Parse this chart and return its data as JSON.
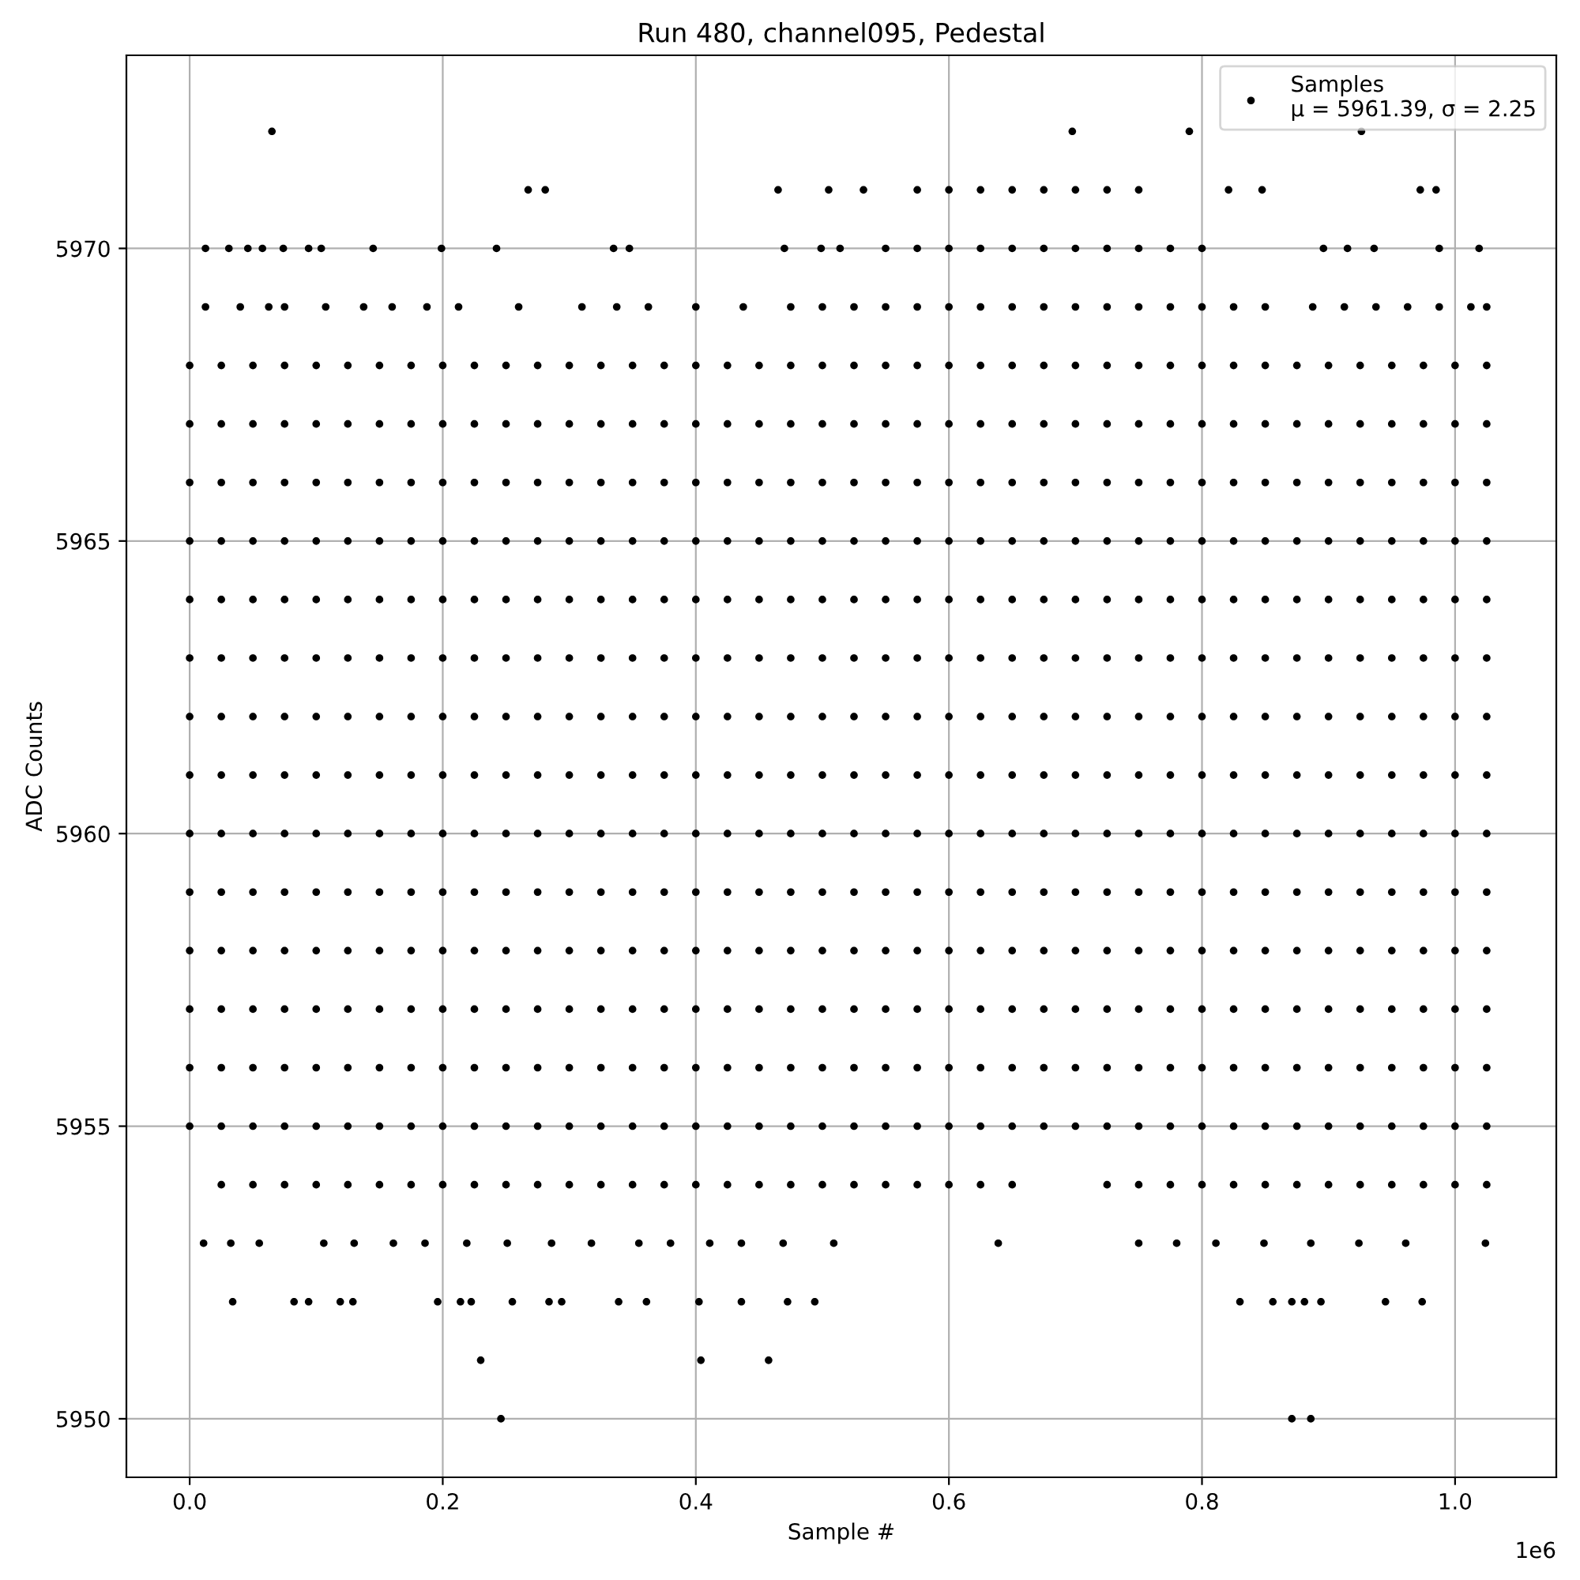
{
  "chart_data": {
    "type": "scatter",
    "title": "Run 480, channel095, Pedestal",
    "xlabel": "Sample #",
    "ylabel": "ADC Counts",
    "annotations": [
      "1e6"
    ],
    "xlim": [
      -0.05,
      1.08
    ],
    "ylim": [
      5949,
      5973.3
    ],
    "xticks": [
      {
        "value": 0,
        "label": "0.0"
      },
      0.2,
      0.4,
      0.6,
      0.8,
      {
        "value": 1,
        "label": "1.0"
      }
    ],
    "yticks": [
      5950,
      5955,
      5960,
      5965,
      5970
    ],
    "grid": true,
    "legend": "top right",
    "marker": "circle",
    "series": [
      {
        "name": "Samples\nμ = 5961.39, σ = 2.25",
        "color": "#000000",
        "x": [
          0,
          0.025,
          0.05,
          0.075,
          0.1,
          0.125,
          0.15,
          0.175,
          0.2,
          0.225,
          0.25,
          0.275,
          0.3,
          0.325,
          0.35,
          0.375,
          0.4,
          0.425,
          0.45,
          0.475,
          0.5,
          0.525,
          0.55,
          0.575,
          0.6,
          0.625,
          0.65,
          0.675,
          0.7,
          0.725,
          0.75,
          0.775,
          0.8,
          0.825,
          0.85,
          0.875,
          0.9,
          0.925,
          0.95,
          0.975,
          1.0,
          1.025,
          0,
          0.025,
          0.05,
          0.075,
          0.1,
          0.125,
          0.15,
          0.175,
          0.2,
          0.225,
          0.25,
          0.275,
          0.3,
          0.325,
          0.35,
          0.375,
          0.4,
          0.425,
          0.45,
          0.475,
          0.5,
          0.525,
          0.55,
          0.575,
          0.6,
          0.625,
          0.65,
          0.675,
          0.7,
          0.725,
          0.75,
          0.775,
          0.8,
          0.825,
          0.85,
          0.875,
          0.9,
          0.925,
          0.95,
          0.975,
          1.0,
          1.025,
          0,
          0.025,
          0.05,
          0.075,
          0.1,
          0.125,
          0.15,
          0.175,
          0.2,
          0.225,
          0.25,
          0.275,
          0.3,
          0.325,
          0.35,
          0.375,
          0.4,
          0.425,
          0.45,
          0.475,
          0.5,
          0.525,
          0.55,
          0.575,
          0.6,
          0.625,
          0.65,
          0.675,
          0.7,
          0.725,
          0.75,
          0.775,
          0.8,
          0.825,
          0.85,
          0.875,
          0.9,
          0.925,
          0.95,
          0.975,
          1.0,
          1.025,
          0,
          0.025,
          0.05,
          0.075,
          0.1,
          0.125,
          0.15,
          0.175,
          0.2,
          0.225,
          0.25,
          0.275,
          0.3,
          0.325,
          0.35,
          0.375,
          0.4,
          0.425,
          0.45,
          0.475,
          0.5,
          0.525,
          0.55,
          0.575,
          0.6,
          0.625,
          0.65,
          0.675,
          0.7,
          0.725,
          0.75,
          0.775,
          0.8,
          0.825,
          0.85,
          0.875,
          0.9,
          0.925,
          0.95,
          0.975,
          1.0,
          1.025,
          0,
          0.025,
          0.05,
          0.075,
          0.1,
          0.125,
          0.15,
          0.175,
          0.2,
          0.225,
          0.25,
          0.275,
          0.3,
          0.325,
          0.35,
          0.375,
          0.4,
          0.425,
          0.45,
          0.475,
          0.5,
          0.525,
          0.55,
          0.575,
          0.6,
          0.625,
          0.65,
          0.675,
          0.7,
          0.725,
          0.75,
          0.775,
          0.8,
          0.825,
          0.85,
          0.875,
          0.9,
          0.925,
          0.95,
          0.975,
          1.0,
          1.025,
          0,
          0.025,
          0.05,
          0.075,
          0.1,
          0.125,
          0.15,
          0.175,
          0.2,
          0.225,
          0.25,
          0.275,
          0.3,
          0.325,
          0.35,
          0.375,
          0.4,
          0.425,
          0.45,
          0.475,
          0.5,
          0.525,
          0.55,
          0.575,
          0.6,
          0.625,
          0.65,
          0.675,
          0.7,
          0.725,
          0.75,
          0.775,
          0.8,
          0.825,
          0.85,
          0.875,
          0.9,
          0.925,
          0.95,
          0.975,
          1.0,
          1.025,
          0,
          0.025,
          0.05,
          0.075,
          0.1,
          0.125,
          0.15,
          0.175,
          0.2,
          0.225,
          0.25,
          0.275,
          0.3,
          0.325,
          0.35,
          0.375,
          0.4,
          0.425,
          0.45,
          0.475,
          0.5,
          0.525,
          0.55,
          0.575,
          0.6,
          0.625,
          0.65,
          0.675,
          0.7,
          0.725,
          0.75,
          0.775,
          0.8,
          0.825,
          0.85,
          0.875,
          0.9,
          0.925,
          0.95,
          0.975,
          1.0,
          1.025,
          0,
          0.025,
          0.05,
          0.075,
          0.1,
          0.125,
          0.15,
          0.175,
          0.2,
          0.225,
          0.25,
          0.275,
          0.3,
          0.325,
          0.35,
          0.375,
          0.4,
          0.425,
          0.45,
          0.475,
          0.5,
          0.525,
          0.55,
          0.575,
          0.6,
          0.625,
          0.65,
          0.675,
          0.7,
          0.725,
          0.75,
          0.775,
          0.8,
          0.825,
          0.85,
          0.875,
          0.9,
          0.925,
          0.95,
          0.975,
          1.0,
          1.025,
          0,
          0.025,
          0.05,
          0.075,
          0.1,
          0.125,
          0.15,
          0.175,
          0.2,
          0.225,
          0.25,
          0.275,
          0.3,
          0.325,
          0.35,
          0.375,
          0.4,
          0.425,
          0.45,
          0.475,
          0.5,
          0.525,
          0.55,
          0.575,
          0.6,
          0.625,
          0.65,
          0.675,
          0.7,
          0.725,
          0.75,
          0.775,
          0.8,
          0.825,
          0.85,
          0.875,
          0.9,
          0.925,
          0.95,
          0.975,
          1.0,
          1.025,
          0,
          0.025,
          0.05,
          0.075,
          0.1,
          0.125,
          0.15,
          0.175,
          0.2,
          0.225,
          0.25,
          0.275,
          0.3,
          0.325,
          0.35,
          0.375,
          0.4,
          0.425,
          0.45,
          0.475,
          0.5,
          0.525,
          0.55,
          0.575,
          0.6,
          0.625,
          0.65,
          0.675,
          0.7,
          0.725,
          0.75,
          0.775,
          0.8,
          0.825,
          0.85,
          0.875,
          0.9,
          0.925,
          0.95,
          0.975,
          1.0,
          1.025,
          0,
          0.025,
          0.05,
          0.075,
          0.1,
          0.125,
          0.15,
          0.175,
          0.2,
          0.225,
          0.25,
          0.275,
          0.3,
          0.325,
          0.35,
          0.375,
          0.4,
          0.425,
          0.45,
          0.475,
          0.5,
          0.525,
          0.55,
          0.575,
          0.6,
          0.625,
          0.65,
          0.675,
          0.7,
          0.725,
          0.75,
          0.775,
          0.8,
          0.825,
          0.85,
          0.875,
          0.9,
          0.925,
          0.95,
          0.975,
          1.0,
          1.025,
          0,
          0.025,
          0.05,
          0.075,
          0.1,
          0.125,
          0.15,
          0.175,
          0.2,
          0.225,
          0.25,
          0.275,
          0.3,
          0.325,
          0.35,
          0.375,
          0.4,
          0.425,
          0.45,
          0.475,
          0.5,
          0.525,
          0.55,
          0.575,
          0.6,
          0.625,
          0.65,
          0.675,
          0.7,
          0.725,
          0.75,
          0.775,
          0.8,
          0.825,
          0.85,
          0.875,
          0.9,
          0.925,
          0.95,
          0.975,
          1.0,
          1.025,
          0,
          0.025,
          0.05,
          0.075,
          0.1,
          0.125,
          0.15,
          0.175,
          0.2,
          0.225,
          0.25,
          0.275,
          0.3,
          0.325,
          0.35,
          0.375,
          0.4,
          0.425,
          0.45,
          0.475,
          0.5,
          0.525,
          0.55,
          0.575,
          0.6,
          0.625,
          0.65,
          0.675,
          0.7,
          0.725,
          0.75,
          0.775,
          0.8,
          0.825,
          0.85,
          0.875,
          0.9,
          0.925,
          0.95,
          0.975,
          1.0,
          1.025,
          0,
          0.025,
          0.05,
          0.075,
          0.1,
          0.125,
          0.15,
          0.175,
          0.2,
          0.225,
          0.25,
          0.275,
          0.3,
          0.325,
          0.35,
          0.375,
          0.4,
          0.425,
          0.45,
          0.475,
          0.5,
          0.525,
          0.55,
          0.575,
          0.6,
          0.625,
          0.65,
          0.675,
          0.7,
          0.725,
          0.75,
          0.775,
          0.8,
          0.825,
          0.85,
          0.875,
          0.9,
          0.925,
          0.95,
          0.975,
          1.0,
          1.025,
          0.025,
          0.05,
          0.075,
          0.1,
          0.125,
          0.15,
          0.175,
          0.2,
          0.225,
          0.25,
          0.275,
          0.3,
          0.325,
          0.35,
          0.375,
          0.4,
          0.425,
          0.45,
          0.475,
          0.5,
          0.525,
          0.55,
          0.575,
          0.6,
          0.625,
          0.65,
          0.725,
          0.75,
          0.775,
          0.8,
          0.825,
          0.85,
          0.875,
          0.9,
          0.925,
          0.95,
          0.975,
          1.0,
          1.025,
          0.065,
          0.6975,
          0.79,
          0.926,
          0.2675,
          0.281,
          0.465,
          0.505,
          0.5325,
          0.575,
          0.6,
          0.625,
          0.65,
          0.675,
          0.7,
          0.725,
          0.75,
          0.821,
          0.8475,
          0.9725,
          0.985,
          0.0125,
          0.031,
          0.046,
          0.0575,
          0.074,
          0.094,
          0.104,
          0.145,
          0.199,
          0.2425,
          0.335,
          0.3475,
          0.47,
          0.499,
          0.514,
          0.55,
          0.575,
          0.6,
          0.625,
          0.65,
          0.675,
          0.7,
          0.725,
          0.75,
          0.775,
          0.8,
          0.896,
          0.915,
          0.936,
          0.9875,
          1.019,
          0.0125,
          0.04,
          0.0625,
          0.075,
          0.1075,
          0.1375,
          0.16,
          0.1875,
          0.2125,
          0.26,
          0.31,
          0.3375,
          0.3625,
          0.4,
          0.4375,
          0.475,
          0.5,
          0.525,
          0.55,
          0.575,
          0.6,
          0.625,
          0.65,
          0.675,
          0.7,
          0.725,
          0.75,
          0.775,
          0.8,
          0.825,
          0.85,
          0.8875,
          0.9125,
          0.9375,
          0.9625,
          0.9875,
          1.0125,
          1.025,
          0.011,
          0.0325,
          0.055,
          0.106,
          0.13,
          0.161,
          0.186,
          0.219,
          0.251,
          0.286,
          0.3175,
          0.355,
          0.38,
          0.411,
          0.436,
          0.469,
          0.509,
          0.639,
          0.75,
          0.78,
          0.811,
          0.849,
          0.886,
          0.924,
          0.961,
          1.024,
          0.034,
          0.0825,
          0.094,
          0.119,
          0.129,
          0.196,
          0.214,
          0.2225,
          0.255,
          0.284,
          0.294,
          0.339,
          0.361,
          0.4025,
          0.436,
          0.4725,
          0.494,
          0.83,
          0.856,
          0.871,
          0.881,
          0.894,
          0.945,
          0.974,
          0.23,
          0.404,
          0.4575,
          0.246,
          0.871,
          0.886
        ],
        "values": [
          5968,
          5968,
          5968,
          5968,
          5968,
          5968,
          5968,
          5968,
          5968,
          5968,
          5968,
          5968,
          5968,
          5968,
          5968,
          5968,
          5968,
          5968,
          5968,
          5968,
          5968,
          5968,
          5968,
          5968,
          5968,
          5968,
          5968,
          5968,
          5968,
          5968,
          5968,
          5968,
          5968,
          5968,
          5968,
          5968,
          5968,
          5968,
          5968,
          5968,
          5968,
          5968,
          5967,
          5967,
          5967,
          5967,
          5967,
          5967,
          5967,
          5967,
          5967,
          5967,
          5967,
          5967,
          5967,
          5967,
          5967,
          5967,
          5967,
          5967,
          5967,
          5967,
          5967,
          5967,
          5967,
          5967,
          5967,
          5967,
          5967,
          5967,
          5967,
          5967,
          5967,
          5967,
          5967,
          5967,
          5967,
          5967,
          5967,
          5967,
          5967,
          5967,
          5967,
          5967,
          5966,
          5966,
          5966,
          5966,
          5966,
          5966,
          5966,
          5966,
          5966,
          5966,
          5966,
          5966,
          5966,
          5966,
          5966,
          5966,
          5966,
          5966,
          5966,
          5966,
          5966,
          5966,
          5966,
          5966,
          5966,
          5966,
          5966,
          5966,
          5966,
          5966,
          5966,
          5966,
          5966,
          5966,
          5966,
          5966,
          5966,
          5966,
          5966,
          5966,
          5966,
          5966,
          5965,
          5965,
          5965,
          5965,
          5965,
          5965,
          5965,
          5965,
          5965,
          5965,
          5965,
          5965,
          5965,
          5965,
          5965,
          5965,
          5965,
          5965,
          5965,
          5965,
          5965,
          5965,
          5965,
          5965,
          5965,
          5965,
          5965,
          5965,
          5965,
          5965,
          5965,
          5965,
          5965,
          5965,
          5965,
          5965,
          5965,
          5965,
          5965,
          5965,
          5965,
          5965,
          5964,
          5964,
          5964,
          5964,
          5964,
          5964,
          5964,
          5964,
          5964,
          5964,
          5964,
          5964,
          5964,
          5964,
          5964,
          5964,
          5964,
          5964,
          5964,
          5964,
          5964,
          5964,
          5964,
          5964,
          5964,
          5964,
          5964,
          5964,
          5964,
          5964,
          5964,
          5964,
          5964,
          5964,
          5964,
          5964,
          5964,
          5964,
          5964,
          5964,
          5964,
          5964,
          5963,
          5963,
          5963,
          5963,
          5963,
          5963,
          5963,
          5963,
          5963,
          5963,
          5963,
          5963,
          5963,
          5963,
          5963,
          5963,
          5963,
          5963,
          5963,
          5963,
          5963,
          5963,
          5963,
          5963,
          5963,
          5963,
          5963,
          5963,
          5963,
          5963,
          5963,
          5963,
          5963,
          5963,
          5963,
          5963,
          5963,
          5963,
          5963,
          5963,
          5963,
          5963,
          5962,
          5962,
          5962,
          5962,
          5962,
          5962,
          5962,
          5962,
          5962,
          5962,
          5962,
          5962,
          5962,
          5962,
          5962,
          5962,
          5962,
          5962,
          5962,
          5962,
          5962,
          5962,
          5962,
          5962,
          5962,
          5962,
          5962,
          5962,
          5962,
          5962,
          5962,
          5962,
          5962,
          5962,
          5962,
          5962,
          5962,
          5962,
          5962,
          5962,
          5962,
          5962,
          5961,
          5961,
          5961,
          5961,
          5961,
          5961,
          5961,
          5961,
          5961,
          5961,
          5961,
          5961,
          5961,
          5961,
          5961,
          5961,
          5961,
          5961,
          5961,
          5961,
          5961,
          5961,
          5961,
          5961,
          5961,
          5961,
          5961,
          5961,
          5961,
          5961,
          5961,
          5961,
          5961,
          5961,
          5961,
          5961,
          5961,
          5961,
          5961,
          5961,
          5961,
          5961,
          5960,
          5960,
          5960,
          5960,
          5960,
          5960,
          5960,
          5960,
          5960,
          5960,
          5960,
          5960,
          5960,
          5960,
          5960,
          5960,
          5960,
          5960,
          5960,
          5960,
          5960,
          5960,
          5960,
          5960,
          5960,
          5960,
          5960,
          5960,
          5960,
          5960,
          5960,
          5960,
          5960,
          5960,
          5960,
          5960,
          5960,
          5960,
          5960,
          5960,
          5960,
          5960,
          5959,
          5959,
          5959,
          5959,
          5959,
          5959,
          5959,
          5959,
          5959,
          5959,
          5959,
          5959,
          5959,
          5959,
          5959,
          5959,
          5959,
          5959,
          5959,
          5959,
          5959,
          5959,
          5959,
          5959,
          5959,
          5959,
          5959,
          5959,
          5959,
          5959,
          5959,
          5959,
          5959,
          5959,
          5959,
          5959,
          5959,
          5959,
          5959,
          5959,
          5959,
          5959,
          5958,
          5958,
          5958,
          5958,
          5958,
          5958,
          5958,
          5958,
          5958,
          5958,
          5958,
          5958,
          5958,
          5958,
          5958,
          5958,
          5958,
          5958,
          5958,
          5958,
          5958,
          5958,
          5958,
          5958,
          5958,
          5958,
          5958,
          5958,
          5958,
          5958,
          5958,
          5958,
          5958,
          5958,
          5958,
          5958,
          5958,
          5958,
          5958,
          5958,
          5958,
          5958,
          5957,
          5957,
          5957,
          5957,
          5957,
          5957,
          5957,
          5957,
          5957,
          5957,
          5957,
          5957,
          5957,
          5957,
          5957,
          5957,
          5957,
          5957,
          5957,
          5957,
          5957,
          5957,
          5957,
          5957,
          5957,
          5957,
          5957,
          5957,
          5957,
          5957,
          5957,
          5957,
          5957,
          5957,
          5957,
          5957,
          5957,
          5957,
          5957,
          5957,
          5957,
          5957,
          5956,
          5956,
          5956,
          5956,
          5956,
          5956,
          5956,
          5956,
          5956,
          5956,
          5956,
          5956,
          5956,
          5956,
          5956,
          5956,
          5956,
          5956,
          5956,
          5956,
          5956,
          5956,
          5956,
          5956,
          5956,
          5956,
          5956,
          5956,
          5956,
          5956,
          5956,
          5956,
          5956,
          5956,
          5956,
          5956,
          5956,
          5956,
          5956,
          5956,
          5956,
          5956,
          5955,
          5955,
          5955,
          5955,
          5955,
          5955,
          5955,
          5955,
          5955,
          5955,
          5955,
          5955,
          5955,
          5955,
          5955,
          5955,
          5955,
          5955,
          5955,
          5955,
          5955,
          5955,
          5955,
          5955,
          5955,
          5955,
          5955,
          5955,
          5955,
          5955,
          5955,
          5955,
          5955,
          5955,
          5955,
          5955,
          5955,
          5955,
          5955,
          5955,
          5955,
          5955,
          5954,
          5954,
          5954,
          5954,
          5954,
          5954,
          5954,
          5954,
          5954,
          5954,
          5954,
          5954,
          5954,
          5954,
          5954,
          5954,
          5954,
          5954,
          5954,
          5954,
          5954,
          5954,
          5954,
          5954,
          5954,
          5954,
          5954,
          5954,
          5954,
          5954,
          5954,
          5954,
          5954,
          5954,
          5954,
          5954,
          5954,
          5954,
          5954,
          5972,
          5972,
          5972,
          5972,
          5971,
          5971,
          5971,
          5971,
          5971,
          5971,
          5971,
          5971,
          5971,
          5971,
          5971,
          5971,
          5971,
          5971,
          5971,
          5971,
          5971,
          5970,
          5970,
          5970,
          5970,
          5970,
          5970,
          5970,
          5970,
          5970,
          5970,
          5970,
          5970,
          5970,
          5970,
          5970,
          5970,
          5970,
          5970,
          5970,
          5970,
          5970,
          5970,
          5970,
          5970,
          5970,
          5970,
          5970,
          5970,
          5970,
          5970,
          5970,
          5969,
          5969,
          5969,
          5969,
          5969,
          5969,
          5969,
          5969,
          5969,
          5969,
          5969,
          5969,
          5969,
          5969,
          5969,
          5969,
          5969,
          5969,
          5969,
          5969,
          5969,
          5969,
          5969,
          5969,
          5969,
          5969,
          5969,
          5969,
          5969,
          5969,
          5969,
          5969,
          5969,
          5969,
          5969,
          5969,
          5969,
          5969,
          5953,
          5953,
          5953,
          5953,
          5953,
          5953,
          5953,
          5953,
          5953,
          5953,
          5953,
          5953,
          5953,
          5953,
          5953,
          5953,
          5953,
          5953,
          5953,
          5953,
          5953,
          5953,
          5953,
          5953,
          5953,
          5953,
          5952,
          5952,
          5952,
          5952,
          5952,
          5952,
          5952,
          5952,
          5952,
          5952,
          5952,
          5952,
          5952,
          5952,
          5952,
          5952,
          5952,
          5952,
          5952,
          5952,
          5952,
          5952,
          5952,
          5952,
          5951,
          5951,
          5951,
          5950,
          5950,
          5950
        ]
      }
    ]
  }
}
